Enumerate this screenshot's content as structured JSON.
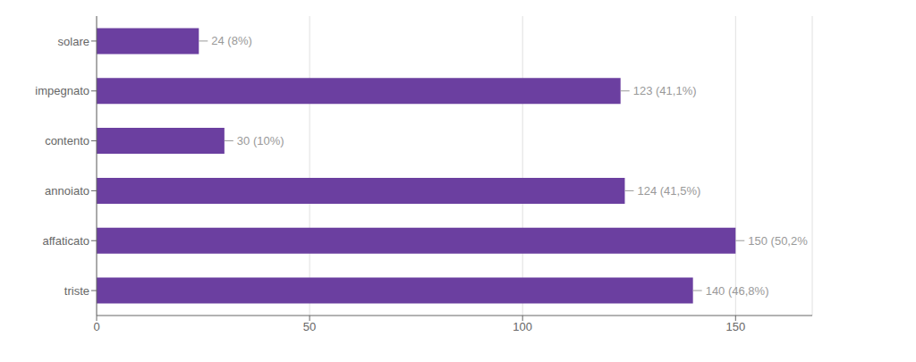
{
  "chart_data": {
    "type": "bar",
    "orientation": "horizontal",
    "categories": [
      "triste",
      "affaticato",
      "annoiato",
      "contento",
      "impegnato",
      "solare"
    ],
    "values": [
      140,
      150,
      124,
      30,
      123,
      24
    ],
    "value_labels": [
      "140 (46,8%)",
      "150 (50,2%",
      "124 (41,5%)",
      "30 (10%)",
      "123 (41,1%)",
      "24 (8%)"
    ],
    "data_labels": true,
    "color": "#6b3fa0",
    "xlim": [
      0,
      168
    ],
    "xticks": [
      0,
      50,
      100,
      150
    ],
    "grid": true
  }
}
